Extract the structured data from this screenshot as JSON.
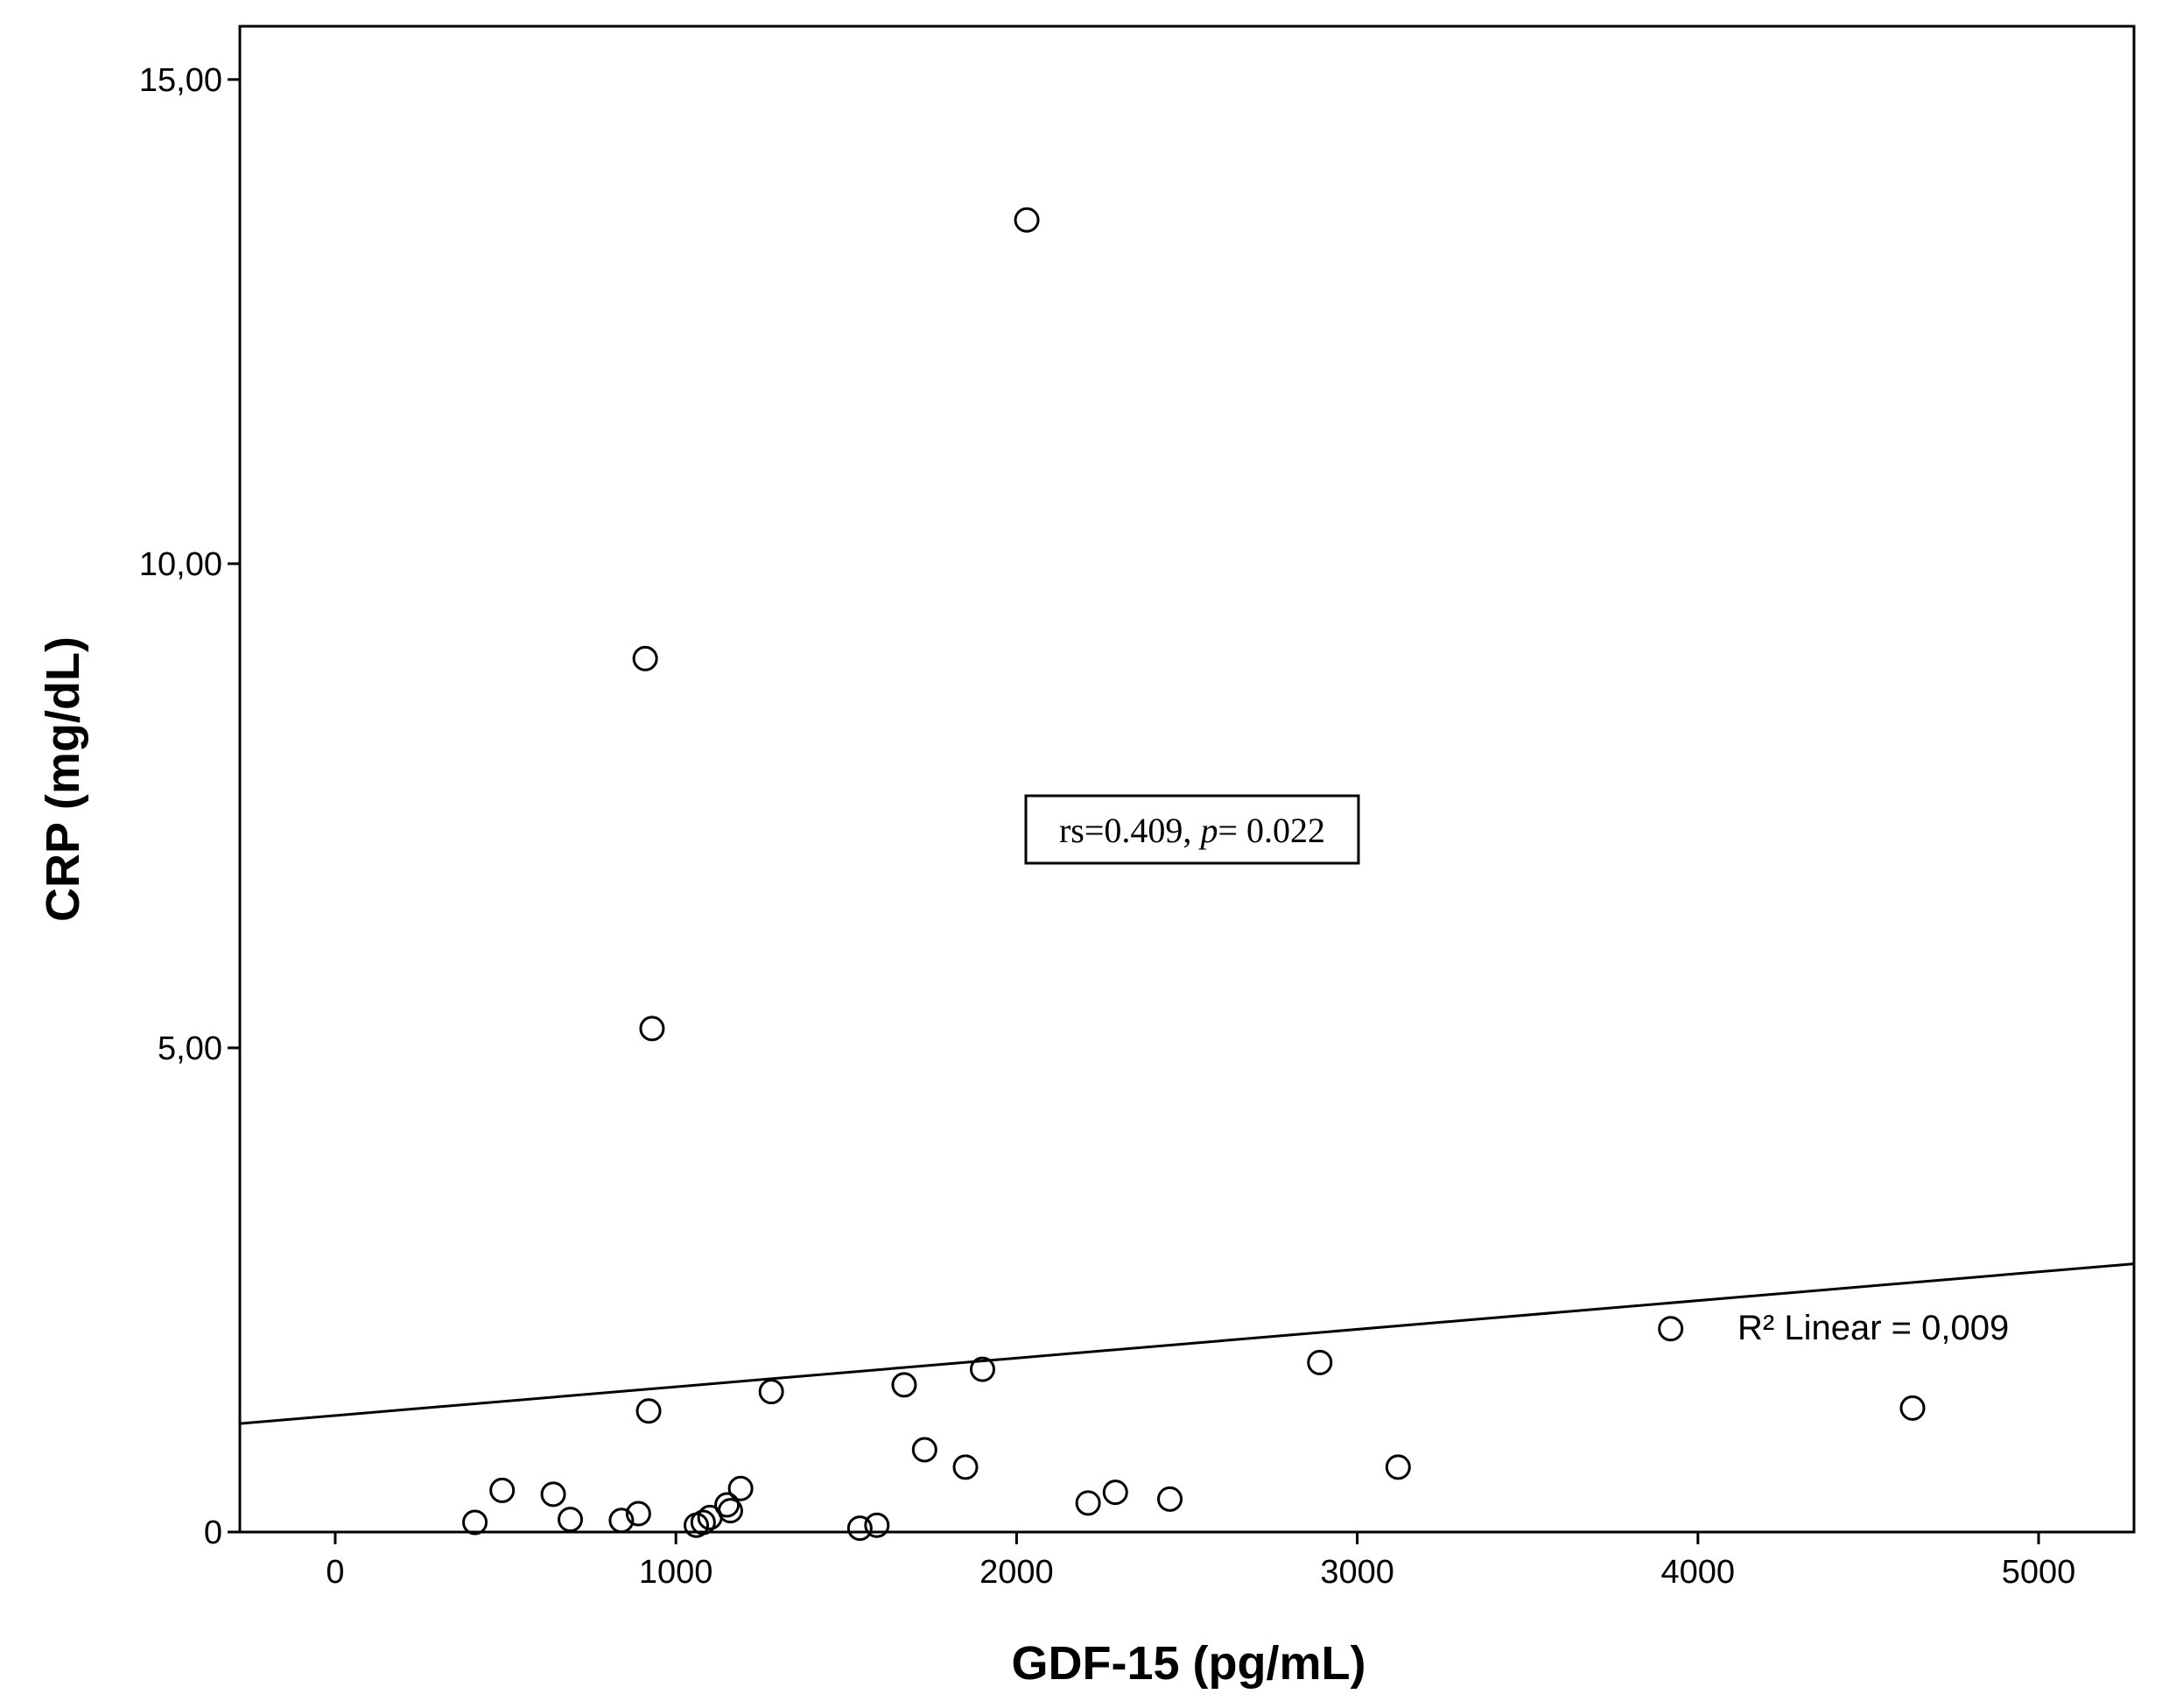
{
  "chart_data": {
    "type": "scatter",
    "xlabel": "GDF-15 (pg/mL)",
    "ylabel": "CRP (mg/dL)",
    "xlim": [
      -280,
      5280
    ],
    "ylim": [
      0,
      15.55
    ],
    "x_ticks": [
      {
        "value": 0,
        "label": "0"
      },
      {
        "value": 1000,
        "label": "1000"
      },
      {
        "value": 2000,
        "label": "2000"
      },
      {
        "value": 3000,
        "label": "3000"
      },
      {
        "value": 4000,
        "label": "4000"
      },
      {
        "value": 5000,
        "label": "5000"
      }
    ],
    "y_ticks": [
      {
        "value": 0,
        "label": "0"
      },
      {
        "value": 5,
        "label": "5,00"
      },
      {
        "value": 10,
        "label": "10,00"
      },
      {
        "value": 15,
        "label": "15,00"
      }
    ],
    "grid": false,
    "marker": "open-circle",
    "points": [
      {
        "x": 2030,
        "y": 13.55
      },
      {
        "x": 910,
        "y": 9.02
      },
      {
        "x": 930,
        "y": 5.2
      },
      {
        "x": 920,
        "y": 1.25
      },
      {
        "x": 1280,
        "y": 1.45
      },
      {
        "x": 1670,
        "y": 1.52
      },
      {
        "x": 1900,
        "y": 1.68
      },
      {
        "x": 2890,
        "y": 1.75
      },
      {
        "x": 3920,
        "y": 2.1
      },
      {
        "x": 4630,
        "y": 1.28
      },
      {
        "x": 1730,
        "y": 0.85
      },
      {
        "x": 1850,
        "y": 0.67
      },
      {
        "x": 3120,
        "y": 0.67
      },
      {
        "x": 490,
        "y": 0.43
      },
      {
        "x": 640,
        "y": 0.39
      },
      {
        "x": 1190,
        "y": 0.45
      },
      {
        "x": 2290,
        "y": 0.41
      },
      {
        "x": 2210,
        "y": 0.3
      },
      {
        "x": 2450,
        "y": 0.34
      },
      {
        "x": 410,
        "y": 0.1
      },
      {
        "x": 690,
        "y": 0.13
      },
      {
        "x": 840,
        "y": 0.12
      },
      {
        "x": 890,
        "y": 0.19
      },
      {
        "x": 1060,
        "y": 0.07
      },
      {
        "x": 1080,
        "y": 0.1
      },
      {
        "x": 1100,
        "y": 0.15
      },
      {
        "x": 1150,
        "y": 0.28
      },
      {
        "x": 1160,
        "y": 0.22
      },
      {
        "x": 1540,
        "y": 0.04
      },
      {
        "x": 1590,
        "y": 0.07
      }
    ],
    "fit_line": {
      "label": "R² Linear = 0,009",
      "x": [
        -280,
        5280
      ],
      "y": [
        1.12,
        2.77
      ]
    },
    "annotation": {
      "rs_symbol": "rs",
      "rs_value": "=0.409, ",
      "p_symbol": "p",
      "p_value": "= 0.022"
    }
  }
}
